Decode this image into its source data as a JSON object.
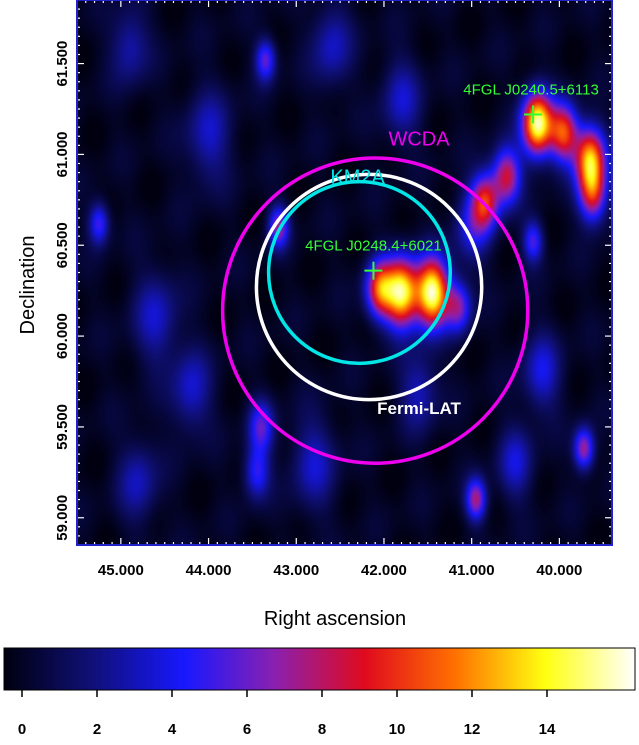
{
  "chart_data": {
    "type": "heatmap",
    "xlabel": "Right ascension",
    "ylabel": "Declination",
    "xlim": [
      45.5,
      39.4
    ],
    "ylim": [
      58.85,
      61.85
    ],
    "x_ticks": [
      "45.000",
      "44.000",
      "43.000",
      "42.000",
      "41.000",
      "40.000"
    ],
    "x_tick_values": [
      45,
      44,
      43,
      42,
      41,
      40
    ],
    "y_ticks": [
      "59.000",
      "59.500",
      "60.000",
      "60.500",
      "61.000",
      "61.500"
    ],
    "y_tick_values": [
      59,
      59.5,
      60,
      60.5,
      61,
      61.5
    ],
    "colorbar": {
      "min": 0,
      "max": 15.5,
      "ticks": [
        "0",
        "2",
        "4",
        "6",
        "8",
        "10",
        "12",
        "14"
      ],
      "tick_values": [
        0,
        2,
        4,
        6,
        8,
        10,
        12,
        14
      ],
      "colors": [
        "#000010",
        "#10107a",
        "#1818ff",
        "#8a20b0",
        "#e00a1e",
        "#ff7000",
        "#ffff10",
        "#ffffff"
      ]
    },
    "hotspots": [
      {
        "ra": 41.8,
        "dec": 60.24,
        "amp": 13.5,
        "sigma": 0.13
      },
      {
        "ra": 41.45,
        "dec": 60.24,
        "amp": 14.5,
        "sigma": 0.13
      },
      {
        "ra": 42.05,
        "dec": 60.26,
        "amp": 9.5,
        "sigma": 0.11
      },
      {
        "ra": 41.15,
        "dec": 60.16,
        "amp": 6.0,
        "sigma": 0.1
      },
      {
        "ra": 40.25,
        "dec": 61.17,
        "amp": 14.5,
        "sigma": 0.12
      },
      {
        "ra": 39.95,
        "dec": 61.12,
        "amp": 9.5,
        "sigma": 0.11
      },
      {
        "ra": 39.65,
        "dec": 60.98,
        "amp": 11.5,
        "sigma": 0.12
      },
      {
        "ra": 39.62,
        "dec": 60.78,
        "amp": 8.0,
        "sigma": 0.11
      },
      {
        "ra": 40.85,
        "dec": 60.74,
        "amp": 8.5,
        "sigma": 0.11
      },
      {
        "ra": 40.6,
        "dec": 60.88,
        "amp": 8.0,
        "sigma": 0.11
      },
      {
        "ra": 43.2,
        "dec": 60.6,
        "amp": 6.5,
        "sigma": 0.08
      },
      {
        "ra": 43.35,
        "dec": 61.52,
        "amp": 5.5,
        "sigma": 0.08
      },
      {
        "ra": 43.4,
        "dec": 59.5,
        "amp": 5.0,
        "sigma": 0.1
      },
      {
        "ra": 43.45,
        "dec": 59.25,
        "amp": 4.5,
        "sigma": 0.1
      },
      {
        "ra": 40.95,
        "dec": 59.1,
        "amp": 7.0,
        "sigma": 0.08
      },
      {
        "ra": 39.72,
        "dec": 59.38,
        "amp": 7.0,
        "sigma": 0.08
      },
      {
        "ra": 40.3,
        "dec": 60.52,
        "amp": 5.0,
        "sigma": 0.08
      },
      {
        "ra": 45.25,
        "dec": 60.62,
        "amp": 5.0,
        "sigma": 0.08
      },
      {
        "ra": 41.0,
        "dec": 60.6,
        "amp": 3.5,
        "sigma": 0.14
      },
      {
        "ra": 44.6,
        "dec": 60.1,
        "amp": 3.0,
        "sigma": 0.18
      },
      {
        "ra": 44.2,
        "dec": 59.7,
        "amp": 3.2,
        "sigma": 0.16
      },
      {
        "ra": 42.8,
        "dec": 59.3,
        "amp": 3.0,
        "sigma": 0.18
      },
      {
        "ra": 44.0,
        "dec": 61.1,
        "amp": 3.0,
        "sigma": 0.18
      },
      {
        "ra": 42.6,
        "dec": 61.6,
        "amp": 3.0,
        "sigma": 0.16
      },
      {
        "ra": 40.2,
        "dec": 59.8,
        "amp": 3.5,
        "sigma": 0.15
      },
      {
        "ra": 41.6,
        "dec": 59.7,
        "amp": 3.0,
        "sigma": 0.15
      },
      {
        "ra": 44.8,
        "dec": 59.2,
        "amp": 2.8,
        "sigma": 0.16
      },
      {
        "ra": 41.8,
        "dec": 61.3,
        "amp": 3.0,
        "sigma": 0.16
      },
      {
        "ra": 44.9,
        "dec": 61.6,
        "amp": 2.8,
        "sigma": 0.15
      },
      {
        "ra": 40.5,
        "dec": 59.3,
        "amp": 3.2,
        "sigma": 0.14
      }
    ],
    "circles": [
      {
        "name": "WCDA",
        "ra": 42.1,
        "dec": 60.14,
        "r_dec": 0.84,
        "color": "#ee00ee",
        "label_ra": 41.6,
        "label_dec": 61.05
      },
      {
        "name": "KM2A",
        "ra": 42.28,
        "dec": 60.35,
        "r_dec": 0.5,
        "color": "#00e6e6",
        "label_ra": 42.3,
        "label_dec": 60.84
      },
      {
        "name": "Fermi-LAT",
        "ra": 42.17,
        "dec": 60.27,
        "r_dec": 0.62,
        "color": "#ffffff",
        "label_ra": 41.6,
        "label_dec": 59.57
      }
    ],
    "sources": [
      {
        "name": "4FGL J0240.5+6113",
        "ra": 40.3,
        "dec": 61.22,
        "color": "#33ff33"
      },
      {
        "name": "4FGL J0248.4+6021",
        "ra": 42.12,
        "dec": 60.36,
        "color": "#33ff33"
      }
    ]
  }
}
